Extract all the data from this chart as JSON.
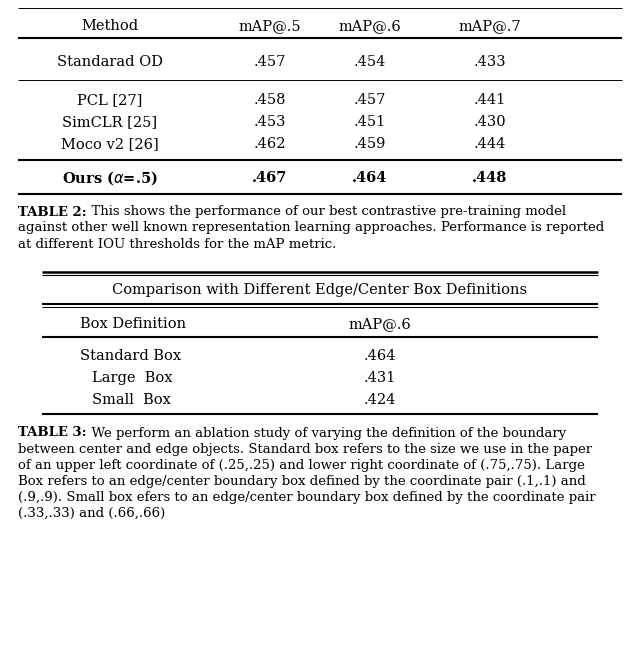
{
  "table2_headers": [
    "Method",
    "mAP@.5",
    "mAP@.6",
    "mAP@.7"
  ],
  "table2_rows": [
    [
      "Standarad OD",
      ".457",
      ".454",
      ".433"
    ],
    [
      "PCL [27]",
      ".458",
      ".457",
      ".441"
    ],
    [
      "SimCLR [25]",
      ".453",
      ".451",
      ".430"
    ],
    [
      "Moco v2 [26]",
      ".462",
      ".459",
      ".444"
    ],
    [
      "Ours (α=.5)",
      ".467",
      ".464",
      ".448"
    ]
  ],
  "table2_caption_bold": "TABLE 2:",
  "table2_caption_rest": "  This shows the performance of our best contrastive pre-training model against other well known representation learning approaches. Performance is reported at different IOU thresholds for the mAP metric.",
  "table3_title": "Comparison with Different Edge/Center Box Definitions",
  "table3_headers": [
    "Box Definition",
    "mAP@.6"
  ],
  "table3_rows": [
    [
      "Standard Box",
      ".464"
    ],
    [
      "Large  Box",
      ".431"
    ],
    [
      "Small  Box",
      ".424"
    ]
  ],
  "table3_caption_bold": "TABLE 3:",
  "table3_caption_rest": "  We perform an ablation study of varying the definition of the boundary between center and edge objects. Standard box refers to the size we use in the paper of an upper left coordinate of (.25,.25) and lower right coordinate of (.75,.75). Large Box refers to an edge/center boundary box defined by the coordinate pair (.1,.1) and (.9,.9). Small box efers to an edge/center boundary box defined by the coordinate pair (.33,.33) and (.66,.66)",
  "bg_color": "#ffffff",
  "text_color": "#000000"
}
